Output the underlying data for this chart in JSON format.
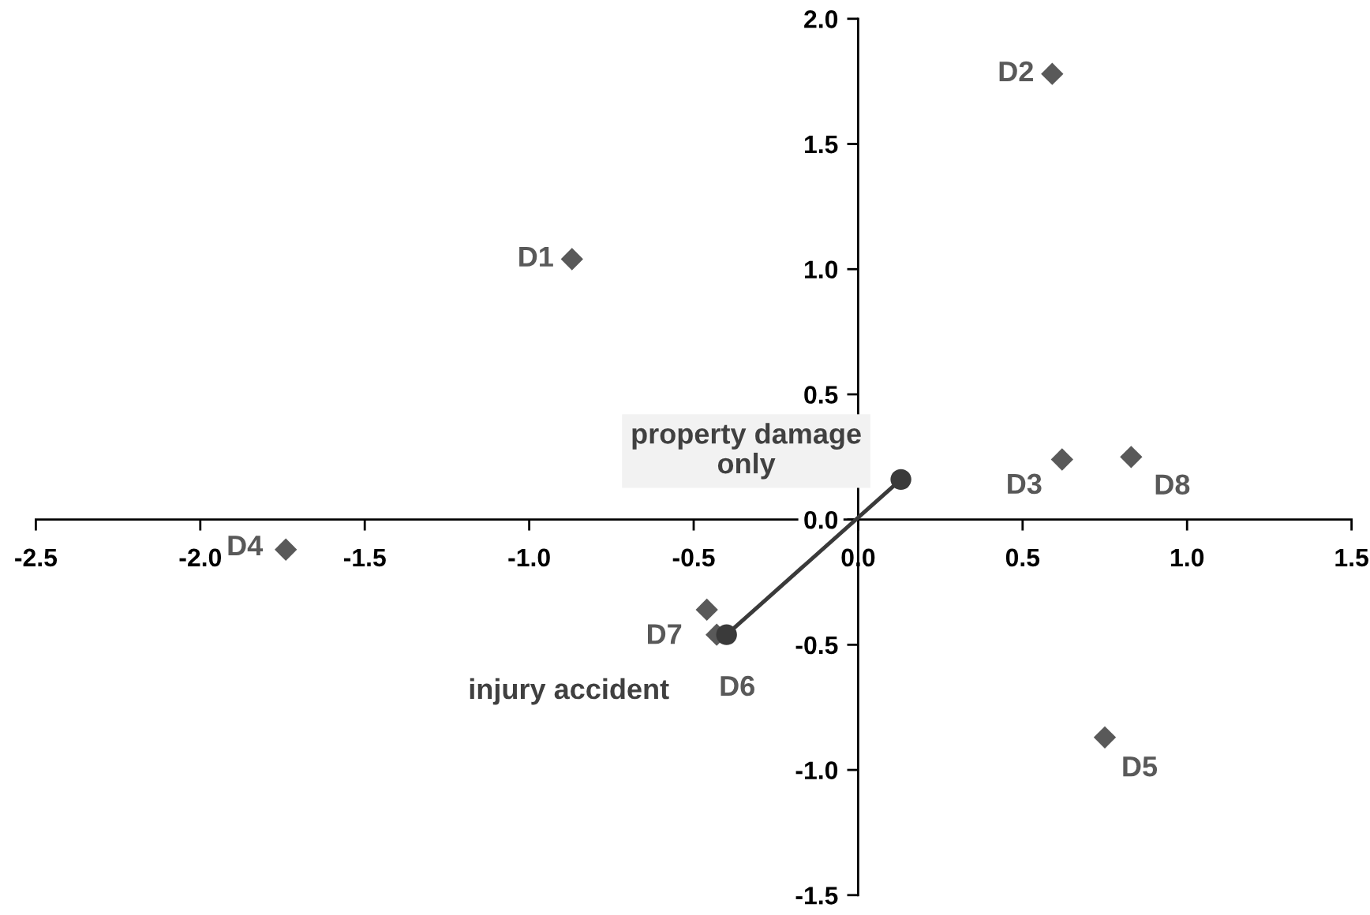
{
  "chart_data": {
    "type": "scatter",
    "xlim": [
      -2.5,
      1.5
    ],
    "ylim": [
      -1.5,
      2.0
    ],
    "xticks": [
      {
        "value": -2.5,
        "label": "-2.5"
      },
      {
        "value": -2.0,
        "label": "-2.0"
      },
      {
        "value": -1.5,
        "label": "-1.5"
      },
      {
        "value": -1.0,
        "label": "-1.0"
      },
      {
        "value": -0.5,
        "label": "-0.5"
      },
      {
        "value": 0.0,
        "label": "0.0"
      },
      {
        "value": 0.5,
        "label": "0.5"
      },
      {
        "value": 1.0,
        "label": "1.0"
      },
      {
        "value": 1.5,
        "label": "1.5"
      }
    ],
    "yticks": [
      {
        "value": -1.5,
        "label": "-1.5"
      },
      {
        "value": -1.0,
        "label": "-1.0"
      },
      {
        "value": -0.5,
        "label": "-0.5"
      },
      {
        "value": 0.0,
        "label": "0.0"
      },
      {
        "value": 0.5,
        "label": "0.5"
      },
      {
        "value": 1.0,
        "label": "1.0"
      },
      {
        "value": 1.5,
        "label": "1.5"
      },
      {
        "value": 2.0,
        "label": "2.0"
      }
    ],
    "series": [
      {
        "marker": "diamond",
        "color": "#595959",
        "x": [
          -0.87,
          0.59,
          0.62,
          -1.74,
          0.75,
          -0.43,
          -0.46,
          0.83
        ],
        "values": [
          1.04,
          1.78,
          0.24,
          -0.12,
          -0.87,
          -0.46,
          -0.36,
          0.25
        ]
      },
      {
        "type": "line",
        "marker": "circle",
        "line_style": "solid",
        "color": "#3a3a3a",
        "x": [
          -0.4,
          0.13
        ],
        "values": [
          -0.46,
          0.16
        ]
      }
    ],
    "annotations": [
      {
        "text": "D1",
        "x": -0.87,
        "y": 1.04
      },
      {
        "text": "D2",
        "x": 0.59,
        "y": 1.78
      },
      {
        "text": "D3",
        "x": 0.62,
        "y": 0.24
      },
      {
        "text": "D4",
        "x": -1.74,
        "y": -0.12
      },
      {
        "text": "D5",
        "x": 0.75,
        "y": -0.87
      },
      {
        "text": "D6",
        "x": -0.43,
        "y": -0.46
      },
      {
        "text": "D7",
        "x": -0.46,
        "y": -0.36
      },
      {
        "text": "D8",
        "x": 0.83,
        "y": 0.25
      },
      {
        "text": "injury accident",
        "x": -0.4,
        "y": -0.46
      },
      {
        "text": "property damage\nonly",
        "x": 0.13,
        "y": 0.16
      }
    ]
  }
}
